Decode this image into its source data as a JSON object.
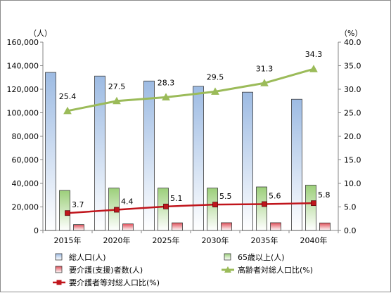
{
  "chart_data": {
    "type": "bar",
    "categories": [
      "2015年",
      "2020年",
      "2025年",
      "2030年",
      "2035年",
      "2040年"
    ],
    "y_left": {
      "unit": "（人）",
      "min": 0,
      "max": 160000,
      "step": 20000
    },
    "y_right": {
      "unit": "（%）",
      "min": 0,
      "max": 40,
      "step": 5
    },
    "series": [
      {
        "name": "総人口(人)",
        "kind": "bar",
        "axis": "left",
        "color": "#9dbbe3",
        "values": [
          134300,
          131200,
          127000,
          122500,
          117500,
          111500
        ]
      },
      {
        "name": "65歳以上(人)",
        "kind": "bar",
        "axis": "left",
        "color": "#9ccf7a",
        "values": [
          34000,
          36000,
          36000,
          36000,
          37000,
          38500
        ]
      },
      {
        "name": "要介護(支援)者数(人)",
        "kind": "bar",
        "axis": "left",
        "color": "#e0505a",
        "values": [
          5000,
          5600,
          6500,
          6600,
          6600,
          6400
        ]
      },
      {
        "name": "高齢者対総人口比(%)",
        "kind": "line",
        "axis": "right",
        "color": "#9bbb59",
        "marker": "triangle",
        "values": [
          25.4,
          27.5,
          28.3,
          29.5,
          31.3,
          34.3
        ],
        "labels": [
          "25.4",
          "27.5",
          "28.3",
          "29.5",
          "31.3",
          "34.3"
        ]
      },
      {
        "name": "要介護者等対総人口比(%)",
        "kind": "line",
        "axis": "right",
        "color": "#c0151c",
        "marker": "square",
        "values": [
          3.7,
          4.4,
          5.1,
          5.5,
          5.6,
          5.8
        ],
        "labels": [
          "3.7",
          "4.4",
          "5.1",
          "5.5",
          "5.6",
          "5.8"
        ]
      }
    ],
    "grid": false,
    "legend_position": "bottom"
  }
}
